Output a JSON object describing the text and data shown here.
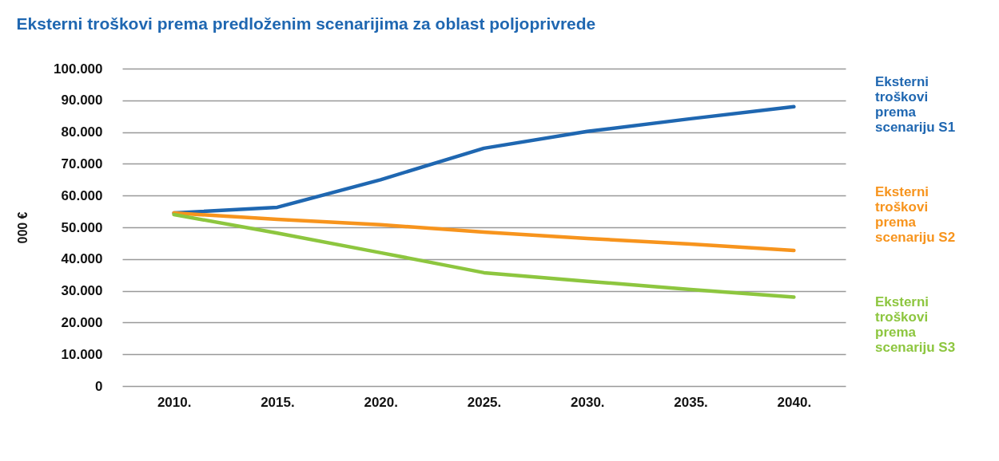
{
  "chart_data": {
    "type": "line",
    "title": "Eksterni troškovi prema predloženim scenarijima za oblast poljoprivrede",
    "ylabel": "000 €",
    "categories": [
      "2010.",
      "2015.",
      "2020.",
      "2025.",
      "2030.",
      "2035.",
      "2040."
    ],
    "series": [
      {
        "name": "Eksterni troškovi prema scenariju S1",
        "color": "#1f67b1",
        "values": [
          54500,
          56300,
          65000,
          74900,
          80200,
          84200,
          88000
        ]
      },
      {
        "name": "Eksterni troškovi prema scenariju S2",
        "color": "#f7941d",
        "values": [
          54500,
          52500,
          50800,
          48500,
          46500,
          44700,
          42700
        ]
      },
      {
        "name": "Eksterni troškovi prema scenariju S3",
        "color": "#8dc63f",
        "values": [
          54000,
          48200,
          42000,
          35700,
          33000,
          30400,
          28000
        ]
      }
    ],
    "ylim": [
      0,
      100000
    ],
    "yticks": [
      {
        "value": 0,
        "label": "0"
      },
      {
        "value": 10000,
        "label": "10.000"
      },
      {
        "value": 20000,
        "label": "20.000"
      },
      {
        "value": 30000,
        "label": "30.000"
      },
      {
        "value": 40000,
        "label": "40.000"
      },
      {
        "value": 50000,
        "label": "50.000"
      },
      {
        "value": 60000,
        "label": "60.000"
      },
      {
        "value": 70000,
        "label": "70.000"
      },
      {
        "value": 80000,
        "label": "80.000"
      },
      {
        "value": 90000,
        "label": "90.000"
      },
      {
        "value": 100000,
        "label": "100.000"
      }
    ],
    "grid": "y",
    "legend": "right",
    "marker": "none",
    "line_style": "solid"
  }
}
